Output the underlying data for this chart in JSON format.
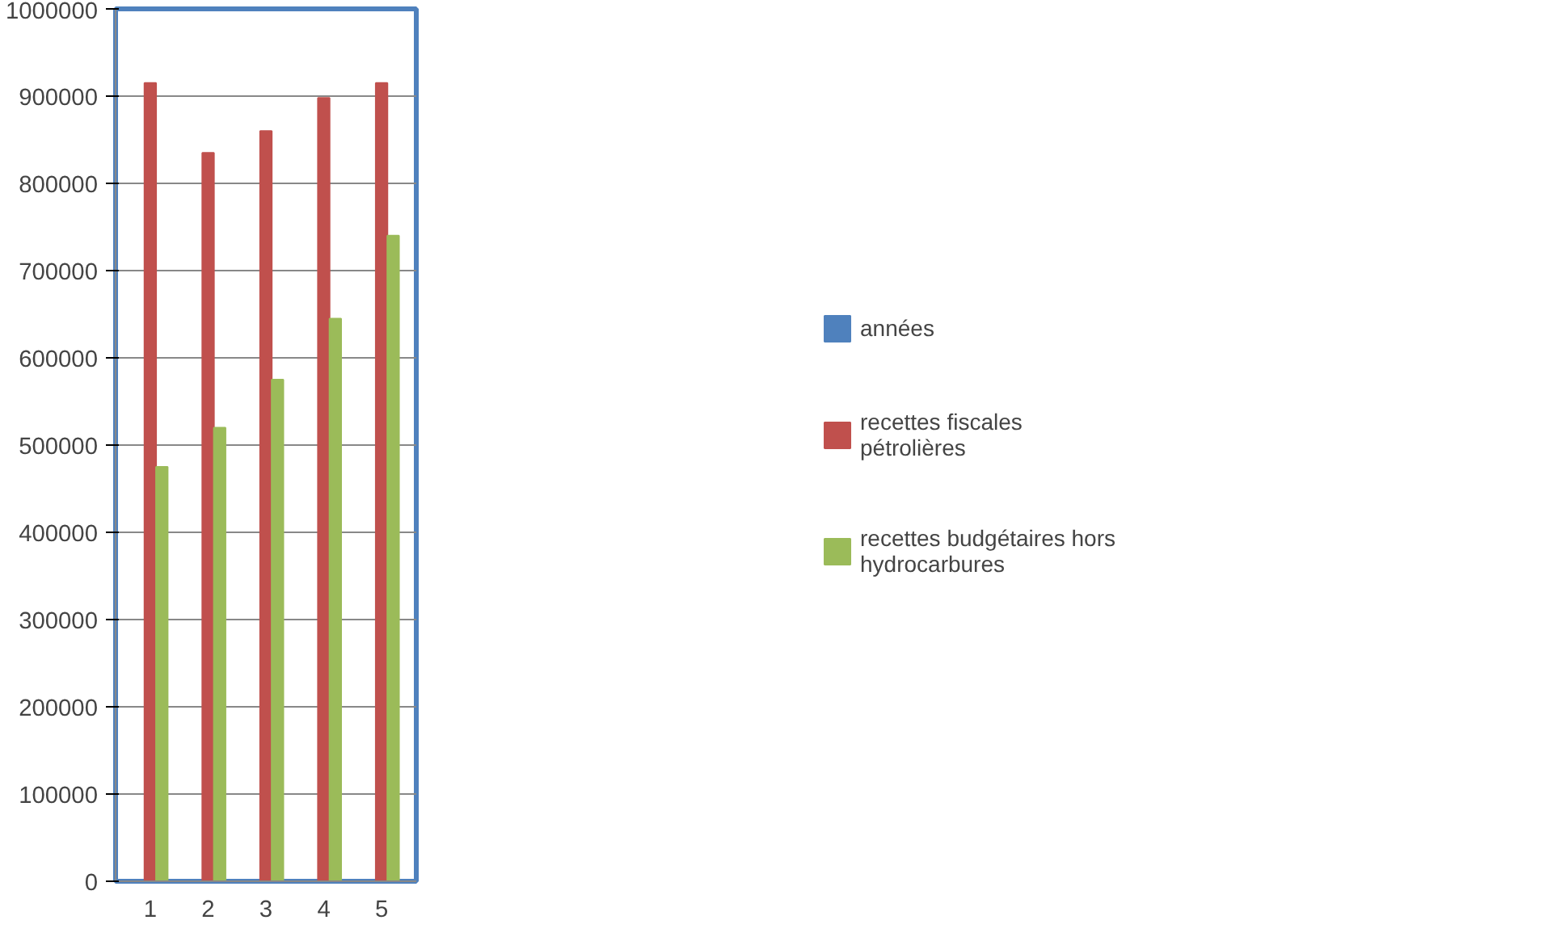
{
  "chart_data": {
    "type": "bar",
    "categories": [
      "1",
      "2",
      "3",
      "4",
      "5"
    ],
    "series": [
      {
        "name": "années",
        "color": "#4f81bd",
        "values": [
          0,
          0,
          0,
          0,
          0
        ]
      },
      {
        "name": "recettes fiscales pétrolières",
        "color": "#c0504d",
        "values": [
          915000,
          835000,
          860000,
          898000,
          915000
        ]
      },
      {
        "name": "recettes budgétaires hors hydrocarbures",
        "color": "#9bbb59",
        "values": [
          475000,
          520000,
          575000,
          645000,
          740000
        ]
      }
    ],
    "ylim": [
      0,
      1000000
    ],
    "yticks": [
      0,
      100000,
      200000,
      300000,
      400000,
      500000,
      600000,
      700000,
      800000,
      900000,
      1000000
    ],
    "grid": "y",
    "legend": "right"
  }
}
